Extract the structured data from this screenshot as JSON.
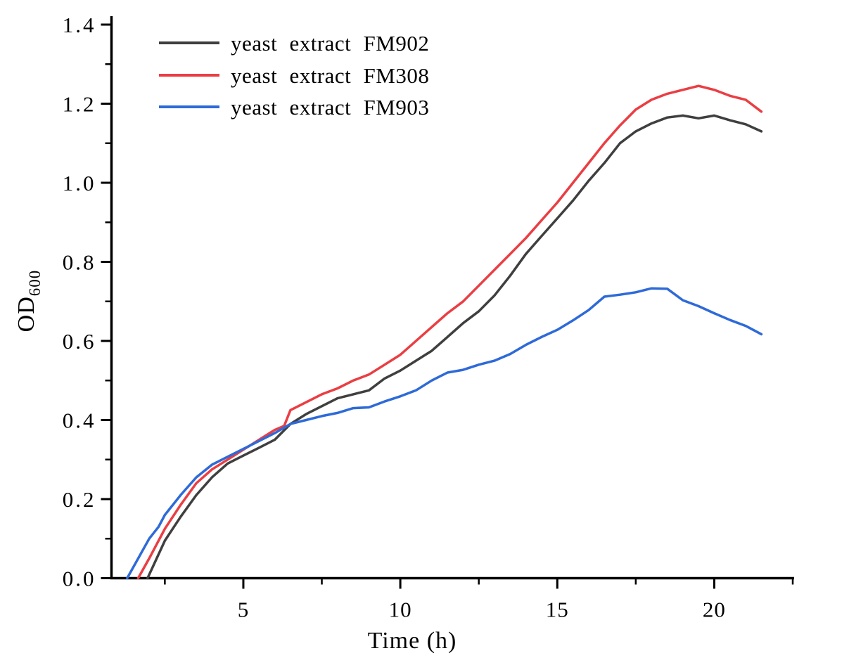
{
  "figure": {
    "background": "#ffffff",
    "axis_color": "#000000",
    "text_color": "#000000"
  },
  "chart_data": {
    "type": "line",
    "title": "",
    "xlabel": "Time (h)",
    "ylabel": "OD",
    "ylabel_subscript": "600",
    "xlim": [
      0.8,
      22.5
    ],
    "ylim": [
      0,
      1.4
    ],
    "grid": false,
    "legend_position": "upper-left",
    "x_major_ticks": [
      5,
      10,
      15,
      20
    ],
    "x_major_tick_labels": [
      "5",
      "10",
      "15",
      "20"
    ],
    "x_minor_ticks": [
      2.5,
      7.5,
      12.5,
      17.5,
      22.5
    ],
    "y_major_ticks": [
      0.0,
      0.2,
      0.4,
      0.6,
      0.8,
      1.0,
      1.2,
      1.4
    ],
    "y_major_tick_labels": [
      "0.0",
      "0.2",
      "0.4",
      "0.6",
      "0.8",
      "1.0",
      "1.2",
      "1.4"
    ],
    "y_minor_ticks": [
      0.1,
      0.3,
      0.5,
      0.7,
      0.9,
      1.1,
      1.3
    ],
    "series": [
      {
        "name": "yeast extract FM902",
        "color": "#3f3f3f",
        "points": [
          [
            1.95,
            0
          ],
          [
            2.5,
            0.095
          ],
          [
            3,
            0.155
          ],
          [
            3.5,
            0.21
          ],
          [
            4,
            0.255
          ],
          [
            4.5,
            0.29
          ],
          [
            5,
            0.31
          ],
          [
            5.5,
            0.33
          ],
          [
            6,
            0.35
          ],
          [
            6.5,
            0.39
          ],
          [
            7,
            0.415
          ],
          [
            7.5,
            0.435
          ],
          [
            8,
            0.455
          ],
          [
            8.5,
            0.465
          ],
          [
            9,
            0.475
          ],
          [
            9.5,
            0.505
          ],
          [
            10,
            0.525
          ],
          [
            10.5,
            0.55
          ],
          [
            11,
            0.575
          ],
          [
            11.5,
            0.61
          ],
          [
            12,
            0.645
          ],
          [
            12.5,
            0.675
          ],
          [
            13,
            0.715
          ],
          [
            13.5,
            0.765
          ],
          [
            14,
            0.82
          ],
          [
            14.5,
            0.865
          ],
          [
            15,
            0.91
          ],
          [
            15.5,
            0.955
          ],
          [
            16,
            1.005
          ],
          [
            16.5,
            1.05
          ],
          [
            17,
            1.1
          ],
          [
            17.5,
            1.13
          ],
          [
            18,
            1.15
          ],
          [
            18.5,
            1.165
          ],
          [
            19,
            1.17
          ],
          [
            19.5,
            1.163
          ],
          [
            20,
            1.17
          ],
          [
            20.5,
            1.158
          ],
          [
            21,
            1.148
          ],
          [
            21.5,
            1.13
          ]
        ]
      },
      {
        "name": "yeast extract FM308",
        "color": "#ea3e43",
        "points": [
          [
            1.65,
            0
          ],
          [
            2,
            0.05
          ],
          [
            2.5,
            0.125
          ],
          [
            3,
            0.185
          ],
          [
            3.5,
            0.24
          ],
          [
            4,
            0.275
          ],
          [
            4.5,
            0.3
          ],
          [
            5,
            0.325
          ],
          [
            5.5,
            0.35
          ],
          [
            6,
            0.375
          ],
          [
            6.3,
            0.385
          ],
          [
            6.5,
            0.425
          ],
          [
            7,
            0.445
          ],
          [
            7.5,
            0.465
          ],
          [
            8,
            0.48
          ],
          [
            8.5,
            0.5
          ],
          [
            9,
            0.515
          ],
          [
            9.5,
            0.54
          ],
          [
            10,
            0.565
          ],
          [
            10.5,
            0.6
          ],
          [
            11,
            0.635
          ],
          [
            11.5,
            0.67
          ],
          [
            12,
            0.7
          ],
          [
            12.5,
            0.74
          ],
          [
            13,
            0.78
          ],
          [
            13.5,
            0.82
          ],
          [
            14,
            0.86
          ],
          [
            14.5,
            0.905
          ],
          [
            15,
            0.95
          ],
          [
            15.5,
            1.0
          ],
          [
            16,
            1.05
          ],
          [
            16.5,
            1.1
          ],
          [
            17,
            1.145
          ],
          [
            17.5,
            1.185
          ],
          [
            18,
            1.21
          ],
          [
            18.5,
            1.225
          ],
          [
            19,
            1.235
          ],
          [
            19.5,
            1.245
          ],
          [
            20,
            1.235
          ],
          [
            20.5,
            1.22
          ],
          [
            21,
            1.21
          ],
          [
            21.5,
            1.18
          ]
        ]
      },
      {
        "name": "yeast extract FM903",
        "color": "#2e6ad8",
        "points": [
          [
            1.3,
            0
          ],
          [
            2,
            0.1
          ],
          [
            2.3,
            0.13
          ],
          [
            2.5,
            0.16
          ],
          [
            3,
            0.21
          ],
          [
            3.5,
            0.255
          ],
          [
            4,
            0.287
          ],
          [
            4.5,
            0.307
          ],
          [
            5,
            0.327
          ],
          [
            5.5,
            0.347
          ],
          [
            6,
            0.367
          ],
          [
            6.5,
            0.39
          ],
          [
            7,
            0.4
          ],
          [
            7.5,
            0.41
          ],
          [
            8,
            0.418
          ],
          [
            8.5,
            0.43
          ],
          [
            9,
            0.432
          ],
          [
            9.5,
            0.447
          ],
          [
            10,
            0.46
          ],
          [
            10.5,
            0.475
          ],
          [
            11,
            0.5
          ],
          [
            11.5,
            0.52
          ],
          [
            12,
            0.527
          ],
          [
            12.5,
            0.54
          ],
          [
            13,
            0.55
          ],
          [
            13.5,
            0.567
          ],
          [
            14,
            0.59
          ],
          [
            14.5,
            0.61
          ],
          [
            15,
            0.628
          ],
          [
            15.5,
            0.652
          ],
          [
            16,
            0.678
          ],
          [
            16.5,
            0.712
          ],
          [
            17,
            0.717
          ],
          [
            17.5,
            0.723
          ],
          [
            18,
            0.733
          ],
          [
            18.5,
            0.732
          ],
          [
            19,
            0.703
          ],
          [
            19.5,
            0.688
          ],
          [
            20,
            0.67
          ],
          [
            20.5,
            0.653
          ],
          [
            21,
            0.638
          ],
          [
            21.5,
            0.617
          ]
        ]
      }
    ]
  }
}
